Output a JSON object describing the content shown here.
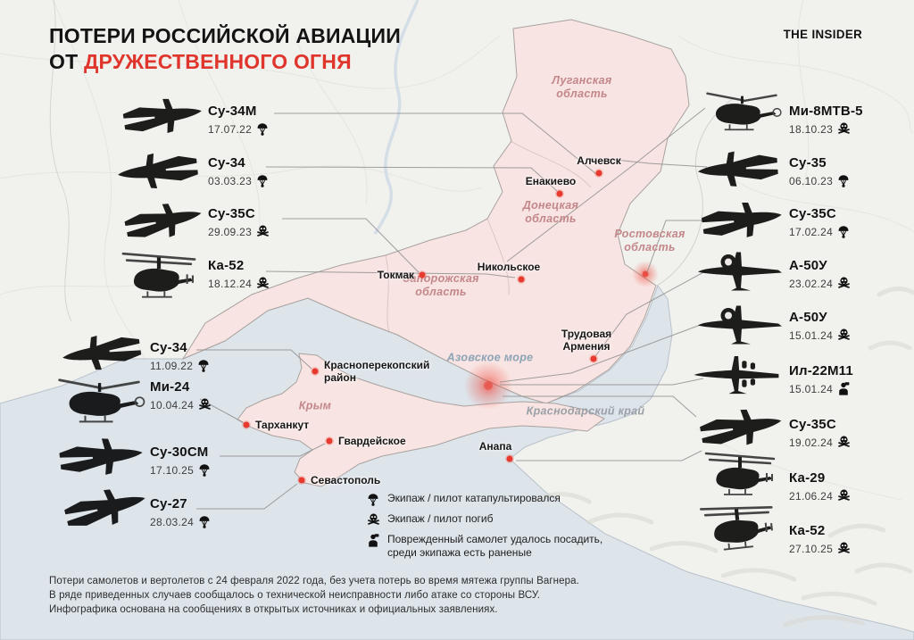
{
  "header": {
    "title_line1": "ПОТЕРИ РОССИЙСКОЙ АВИАЦИИ",
    "title_line2_black": "ОТ",
    "title_line2_red": "ДРУЖЕСТВЕННОГО ОГНЯ",
    "logo": "THE INSIDER"
  },
  "colors": {
    "accent_red": "#e0352c",
    "dot_red": "#e8392e",
    "region_pink": "#f8e4e2",
    "sea": "#dde4ea",
    "land": "#f1f1ee"
  },
  "entries": {
    "left": [
      {
        "name": "Су-34М",
        "date": "17.07.22",
        "status": "ejected",
        "aircraft": "fighter-jet"
      },
      {
        "name": "Су-34",
        "date": "03.03.23",
        "status": "ejected",
        "aircraft": "fighter-jet"
      },
      {
        "name": "Су-35С",
        "date": "29.09.23",
        "status": "killed",
        "aircraft": "fighter-jet"
      },
      {
        "name": "Ка-52",
        "date": "18.12.24",
        "status": "killed",
        "aircraft": "helicopter-coaxial"
      },
      {
        "name": "Су-34",
        "date": "11.09.22",
        "status": "ejected",
        "aircraft": "fighter-jet"
      },
      {
        "name": "Ми-24",
        "date": "10.04.24",
        "status": "killed",
        "aircraft": "helicopter"
      },
      {
        "name": "Су-30СМ",
        "date": "17.10.25",
        "status": "ejected",
        "aircraft": "fighter-jet"
      },
      {
        "name": "Су-27",
        "date": "28.03.24",
        "status": "ejected",
        "aircraft": "fighter-jet"
      }
    ],
    "right": [
      {
        "name": "Ми-8МТВ-5",
        "date": "18.10.23",
        "status": "killed",
        "aircraft": "helicopter"
      },
      {
        "name": "Су-35",
        "date": "06.10.23",
        "status": "ejected",
        "aircraft": "fighter-jet"
      },
      {
        "name": "Су-35С",
        "date": "17.02.24",
        "status": "ejected",
        "aircraft": "fighter-jet"
      },
      {
        "name": "А-50У",
        "date": "23.02.24",
        "status": "killed",
        "aircraft": "awacs"
      },
      {
        "name": "А-50У",
        "date": "15.01.24",
        "status": "killed",
        "aircraft": "awacs"
      },
      {
        "name": "Ил-22М11",
        "date": "15.01.24",
        "status": "landed",
        "aircraft": "transport-plane"
      },
      {
        "name": "Су-35С",
        "date": "19.02.24",
        "status": "killed",
        "aircraft": "fighter-jet"
      },
      {
        "name": "Ка-29",
        "date": "21.06.24",
        "status": "killed",
        "aircraft": "helicopter-coaxial"
      },
      {
        "name": "Ка-52",
        "date": "27.10.25",
        "status": "killed",
        "aircraft": "helicopter-coaxial"
      }
    ]
  },
  "map": {
    "cities": [
      {
        "name": "Алчевск"
      },
      {
        "name": "Енакиево"
      },
      {
        "name": "Никольское"
      },
      {
        "name": "Токмак"
      },
      {
        "name": "Красноперекопский\nрайон"
      },
      {
        "name": "Тарханкут"
      },
      {
        "name": "Гвардейское"
      },
      {
        "name": "Севастополь"
      },
      {
        "name": "Анапа"
      },
      {
        "name": "Трудовая\nАрмения"
      }
    ],
    "regions": [
      {
        "name": "Луганская\nобласть",
        "type": "oblast"
      },
      {
        "name": "Донецкая\nобласть",
        "type": "oblast"
      },
      {
        "name": "Запорожская\nобласть",
        "type": "oblast"
      },
      {
        "name": "Ростовская\nобласть",
        "type": "oblast"
      },
      {
        "name": "Крым",
        "type": "oblast"
      },
      {
        "name": "Азовское море",
        "type": "sea"
      },
      {
        "name": "Краснодарский край",
        "type": "krai"
      }
    ]
  },
  "legend": {
    "items": [
      {
        "icon": "parachute-icon",
        "label": "Экипаж / пилот катапультировался"
      },
      {
        "icon": "skull-icon",
        "label": "Экипаж / пилот погиб"
      },
      {
        "icon": "landed-icon",
        "label": "Поврежденный самолет удалось посадить,\nсреди экипажа есть раненые"
      }
    ]
  },
  "footer": {
    "lines": [
      "Потери самолетов и вертолетов с 24 февраля 2022 года, без учета потерь во время мятежа группы Вагнера.",
      "В ряде приведенных случаев сообщалось о технической неисправности либо атаке со стороны ВСУ.",
      "Инфографика основана на сообщениях в открытых источниках и официальных заявлениях."
    ]
  }
}
